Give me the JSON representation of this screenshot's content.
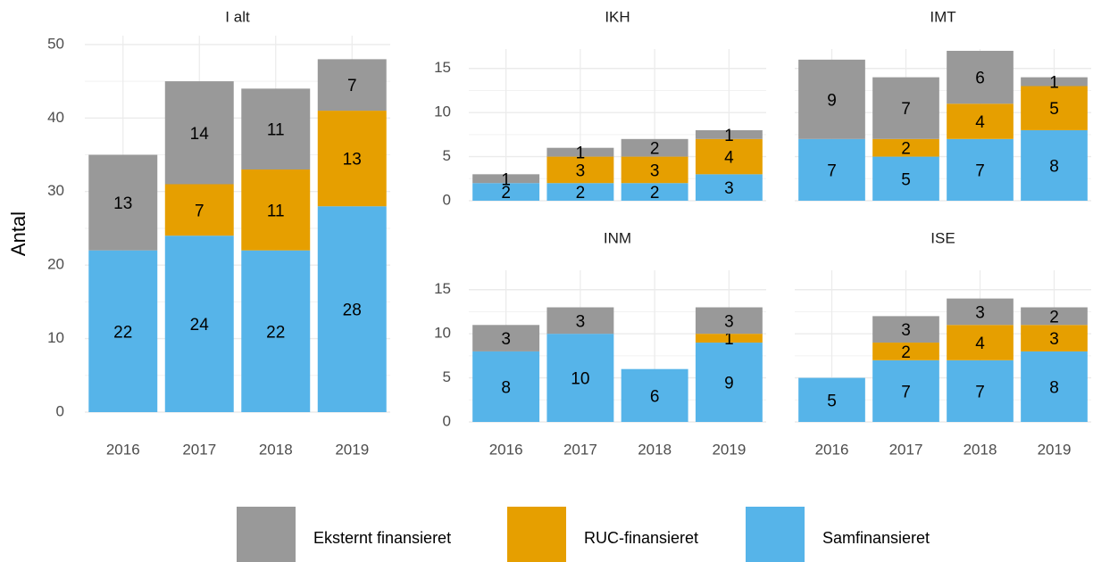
{
  "ylabel": "Antal",
  "chart_data": [
    {
      "type": "stacked_bar",
      "title": "I alt",
      "categories": [
        "2016",
        "2017",
        "2018",
        "2019"
      ],
      "ylim": [
        0,
        51.2
      ],
      "yticks": [
        0,
        10,
        20,
        30,
        40,
        50
      ],
      "grid": true,
      "series": [
        {
          "name": "Samfinansieret",
          "color": "#56B4E9",
          "values": [
            22,
            24,
            22,
            28
          ]
        },
        {
          "name": "RUC-finansieret",
          "color": "#E69F00",
          "values": [
            null,
            7,
            11,
            13
          ]
        },
        {
          "name": "Eksternt finansieret",
          "color": "#999999",
          "values": [
            13,
            14,
            11,
            7
          ]
        }
      ]
    },
    {
      "type": "stacked_bar",
      "title": "IKH",
      "categories": [
        "2016",
        "2017",
        "2018",
        "2019"
      ],
      "ylim": [
        0,
        17.2
      ],
      "yticks": [
        0,
        5,
        10,
        15
      ],
      "grid": true,
      "series": [
        {
          "name": "Samfinansieret",
          "color": "#56B4E9",
          "values": [
            2,
            2,
            2,
            3
          ]
        },
        {
          "name": "RUC-finansieret",
          "color": "#E69F00",
          "values": [
            null,
            3,
            3,
            4
          ]
        },
        {
          "name": "Eksternt finansieret",
          "color": "#999999",
          "values": [
            1,
            1,
            2,
            1
          ]
        }
      ]
    },
    {
      "type": "stacked_bar",
      "title": "IMT",
      "categories": [
        "2016",
        "2017",
        "2018",
        "2019"
      ],
      "ylim": [
        0,
        17.2
      ],
      "yticks": [
        0,
        5,
        10,
        15
      ],
      "grid": true,
      "series": [
        {
          "name": "Samfinansieret",
          "color": "#56B4E9",
          "values": [
            7,
            5,
            7,
            8
          ]
        },
        {
          "name": "RUC-finansieret",
          "color": "#E69F00",
          "values": [
            null,
            2,
            4,
            5
          ]
        },
        {
          "name": "Eksternt finansieret",
          "color": "#999999",
          "values": [
            9,
            7,
            6,
            1
          ]
        }
      ]
    },
    {
      "type": "stacked_bar",
      "title": "INM",
      "categories": [
        "2016",
        "2017",
        "2018",
        "2019"
      ],
      "ylim": [
        0,
        17.2
      ],
      "yticks": [
        0,
        5,
        10,
        15
      ],
      "grid": true,
      "series": [
        {
          "name": "Samfinansieret",
          "color": "#56B4E9",
          "values": [
            8,
            10,
            6,
            9
          ]
        },
        {
          "name": "RUC-finansieret",
          "color": "#E69F00",
          "values": [
            null,
            null,
            null,
            1
          ]
        },
        {
          "name": "Eksternt finansieret",
          "color": "#999999",
          "values": [
            3,
            3,
            null,
            3
          ]
        }
      ]
    },
    {
      "type": "stacked_bar",
      "title": "ISE",
      "categories": [
        "2016",
        "2017",
        "2018",
        "2019"
      ],
      "ylim": [
        0,
        17.2
      ],
      "yticks": [
        0,
        5,
        10,
        15
      ],
      "grid": true,
      "series": [
        {
          "name": "Samfinansieret",
          "color": "#56B4E9",
          "values": [
            5,
            7,
            7,
            8
          ]
        },
        {
          "name": "RUC-finansieret",
          "color": "#E69F00",
          "values": [
            null,
            2,
            4,
            3
          ]
        },
        {
          "name": "Eksternt finansieret",
          "color": "#999999",
          "values": [
            null,
            3,
            3,
            2
          ]
        }
      ]
    }
  ]
}
